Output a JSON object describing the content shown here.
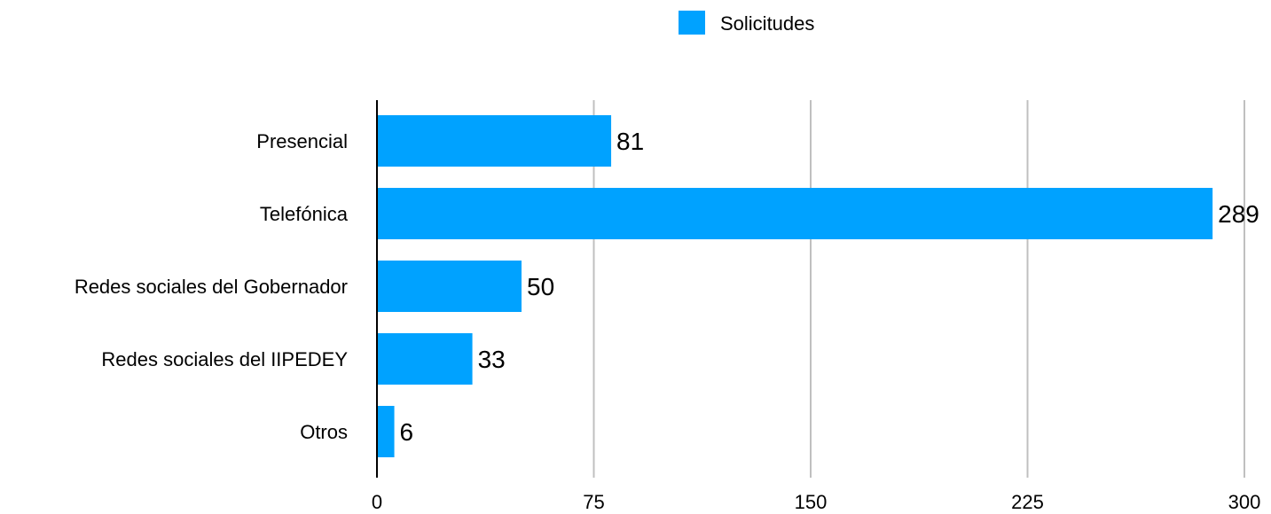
{
  "chart_data": {
    "type": "bar",
    "orientation": "horizontal",
    "categories": [
      "Presencial",
      "Telefónica",
      "Redes sociales del Gobernador",
      "Redes sociales del IIPEDEY",
      "Otros"
    ],
    "series": [
      {
        "name": "Solicitudes",
        "values": [
          81,
          289,
          50,
          33,
          6
        ],
        "color": "#00A2FF"
      }
    ],
    "xlim": [
      0,
      300
    ],
    "xticks": [
      0,
      75,
      150,
      225,
      300
    ],
    "grid": true,
    "grid_color": "#C0C0C0",
    "data_labels": true,
    "legend": {
      "position": "top-center",
      "entries": [
        "Solicitudes"
      ]
    },
    "title": "",
    "xlabel": "",
    "ylabel": ""
  }
}
